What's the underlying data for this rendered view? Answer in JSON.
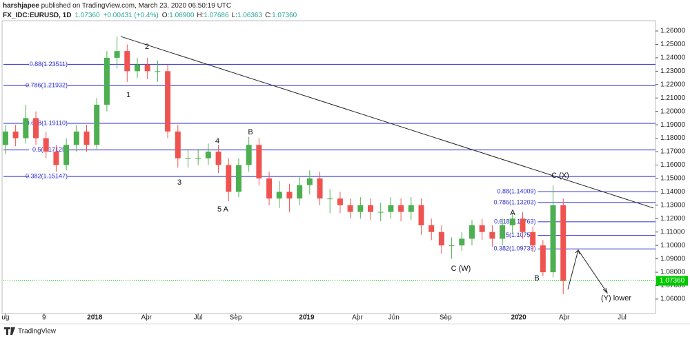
{
  "header": {
    "publisher": "harshjapee",
    "published": " published on TradingView.com, March 23, 2020 06:50:19 UTC",
    "symbol": "FX_IDC:EURUSD, 1D",
    "last": "1.07360",
    "change": "+0.00431 (+0.4%)",
    "ohlc": [
      {
        "label": "O:",
        "value": "1.06900"
      },
      {
        "label": "H:",
        "value": "1.07686"
      },
      {
        "label": "L:",
        "value": "1.06363"
      },
      {
        "label": "C:",
        "value": "1.07360"
      }
    ]
  },
  "footer": {
    "brand": "TradingView"
  },
  "chart_data": {
    "type": "candlestick",
    "open": [
      1.175,
      1.185,
      1.18,
      1.195,
      1.18,
      1.17,
      1.16,
      1.175,
      1.185,
      1.175,
      1.205,
      1.24,
      1.245,
      1.23,
      1.235,
      1.23,
      1.23,
      1.185,
      1.165,
      1.165,
      1.165,
      1.17,
      1.16,
      1.14,
      1.16,
      1.175,
      1.15,
      1.135,
      1.14,
      1.135,
      1.145,
      1.15,
      1.135,
      1.135,
      1.13,
      1.125,
      1.13,
      1.125,
      1.125,
      1.13,
      1.125,
      1.13,
      1.115,
      1.11,
      1.1,
      1.1,
      1.105,
      1.115,
      1.11,
      1.105,
      1.115,
      1.12,
      1.11,
      1.1,
      1.08,
      1.13
    ],
    "high": [
      1.19,
      1.19,
      1.205,
      1.2,
      1.185,
      1.175,
      1.18,
      1.19,
      1.19,
      1.21,
      1.245,
      1.256,
      1.25,
      1.24,
      1.24,
      1.238,
      1.235,
      1.19,
      1.172,
      1.172,
      1.176,
      1.175,
      1.165,
      1.165,
      1.181,
      1.18,
      1.155,
      1.148,
      1.146,
      1.152,
      1.156,
      1.155,
      1.142,
      1.14,
      1.135,
      1.136,
      1.135,
      1.132,
      1.136,
      1.135,
      1.136,
      1.135,
      1.12,
      1.115,
      1.106,
      1.11,
      1.119,
      1.12,
      1.115,
      1.12,
      1.124,
      1.125,
      1.114,
      1.104,
      1.145,
      1.135
    ],
    "low": [
      1.168,
      1.174,
      1.176,
      1.175,
      1.165,
      1.155,
      1.156,
      1.17,
      1.17,
      1.172,
      1.2,
      1.232,
      1.222,
      1.225,
      1.224,
      1.222,
      1.18,
      1.158,
      1.158,
      1.16,
      1.16,
      1.154,
      1.133,
      1.136,
      1.155,
      1.145,
      1.13,
      1.128,
      1.125,
      1.13,
      1.138,
      1.13,
      1.124,
      1.124,
      1.12,
      1.12,
      1.119,
      1.118,
      1.12,
      1.118,
      1.119,
      1.108,
      1.104,
      1.094,
      1.09,
      1.096,
      1.1,
      1.104,
      1.099,
      1.1,
      1.109,
      1.105,
      1.095,
      1.077,
      1.076,
      1.0636
    ],
    "close": [
      1.185,
      1.18,
      1.195,
      1.18,
      1.17,
      1.16,
      1.175,
      1.185,
      1.175,
      1.205,
      1.24,
      1.245,
      1.23,
      1.235,
      1.23,
      1.23,
      1.185,
      1.165,
      1.165,
      1.165,
      1.17,
      1.16,
      1.14,
      1.16,
      1.175,
      1.15,
      1.135,
      1.14,
      1.135,
      1.145,
      1.15,
      1.135,
      1.135,
      1.13,
      1.125,
      1.13,
      1.125,
      1.125,
      1.13,
      1.125,
      1.13,
      1.115,
      1.11,
      1.1,
      1.1,
      1.105,
      1.115,
      1.11,
      1.105,
      1.115,
      1.12,
      1.11,
      1.1,
      1.08,
      1.13,
      1.0736
    ],
    "up_color": "#4caf50",
    "down_color": "#ef5350",
    "xlim": [
      -0.2,
      64.1
    ],
    "xticks": [
      {
        "value": 0,
        "label": "ug"
      },
      {
        "value": 3.8,
        "label": "9"
      },
      {
        "value": 8.8,
        "label": "2018"
      },
      {
        "value": 13.9,
        "label": "Apr"
      },
      {
        "value": 19.0,
        "label": "Jul"
      },
      {
        "value": 22.7,
        "label": "Sep"
      },
      {
        "value": 29.7,
        "label": "2019"
      },
      {
        "value": 34.7,
        "label": "Apr"
      },
      {
        "value": 38.3,
        "label": "Jun"
      },
      {
        "value": 43.4,
        "label": "Sep"
      },
      {
        "value": 50.6,
        "label": "2020"
      },
      {
        "value": 55.1,
        "label": "Apr"
      },
      {
        "value": 60.8,
        "label": "Jul"
      }
    ],
    "ylim": [
      1.0492,
      1.2677
    ],
    "yticks": [
      {
        "value": 1.06,
        "label": "1.06000"
      },
      {
        "value": 1.07,
        "label": "1.07000"
      },
      {
        "value": 1.08,
        "label": "1.08000"
      },
      {
        "value": 1.09,
        "label": "1.09000"
      },
      {
        "value": 1.1,
        "label": "1.10000"
      },
      {
        "value": 1.11,
        "label": "1.11000"
      },
      {
        "value": 1.12,
        "label": "1.12000"
      },
      {
        "value": 1.13,
        "label": "1.13000"
      },
      {
        "value": 1.14,
        "label": "1.14000"
      },
      {
        "value": 1.15,
        "label": "1.15000"
      },
      {
        "value": 1.16,
        "label": "1.16000"
      },
      {
        "value": 1.17,
        "label": "1.17000"
      },
      {
        "value": 1.18,
        "label": "1.18000"
      },
      {
        "value": 1.19,
        "label": "1.19000"
      },
      {
        "value": 1.2,
        "label": "1.20000"
      },
      {
        "value": 1.21,
        "label": "1.21000"
      },
      {
        "value": 1.22,
        "label": "1.22000"
      },
      {
        "value": 1.23,
        "label": "1.23000"
      },
      {
        "value": 1.24,
        "label": "1.24000"
      },
      {
        "value": 1.25,
        "label": "1.25000"
      },
      {
        "value": 1.26,
        "label": "1.26000"
      }
    ],
    "grid": false,
    "fib_color": "#2e2ed1",
    "fib_sets": [
      {
        "start": -0.2,
        "levels": [
          {
            "value": 1.23511,
            "label": "0.88(1.23511)"
          },
          {
            "value": 1.21932,
            "label": "0.786(1.21932)"
          },
          {
            "value": 1.1911,
            "label": "0.618(1.19110)"
          },
          {
            "value": 1.17125,
            "label": "0.5(1.17125)"
          },
          {
            "value": 1.15147,
            "label": "0.382(1.15147)"
          }
        ]
      },
      {
        "start": 52.5,
        "levels": [
          {
            "value": 1.14009,
            "label": "0.88(1.14009)"
          },
          {
            "value": 1.13203,
            "label": "0.786(1.13203)"
          },
          {
            "value": 1.11763,
            "label": "0.618(1.11763)"
          },
          {
            "value": 1.10751,
            "label": "0.5(1.10751)"
          },
          {
            "value": 1.09739,
            "label": "0.382(1.09739)"
          }
        ]
      }
    ],
    "trendline": {
      "x": [
        11.36,
        63.9
      ],
      "y": [
        1.2559,
        1.1279
      ]
    },
    "last_price": {
      "value": 1.0736,
      "label": "1.07360",
      "color": "#00c800"
    },
    "annotations": [
      "1",
      "2",
      "3",
      "4",
      "5 A",
      "B",
      "C (W)",
      "A",
      "B",
      "C (X)",
      "(Y) lower"
    ]
  }
}
